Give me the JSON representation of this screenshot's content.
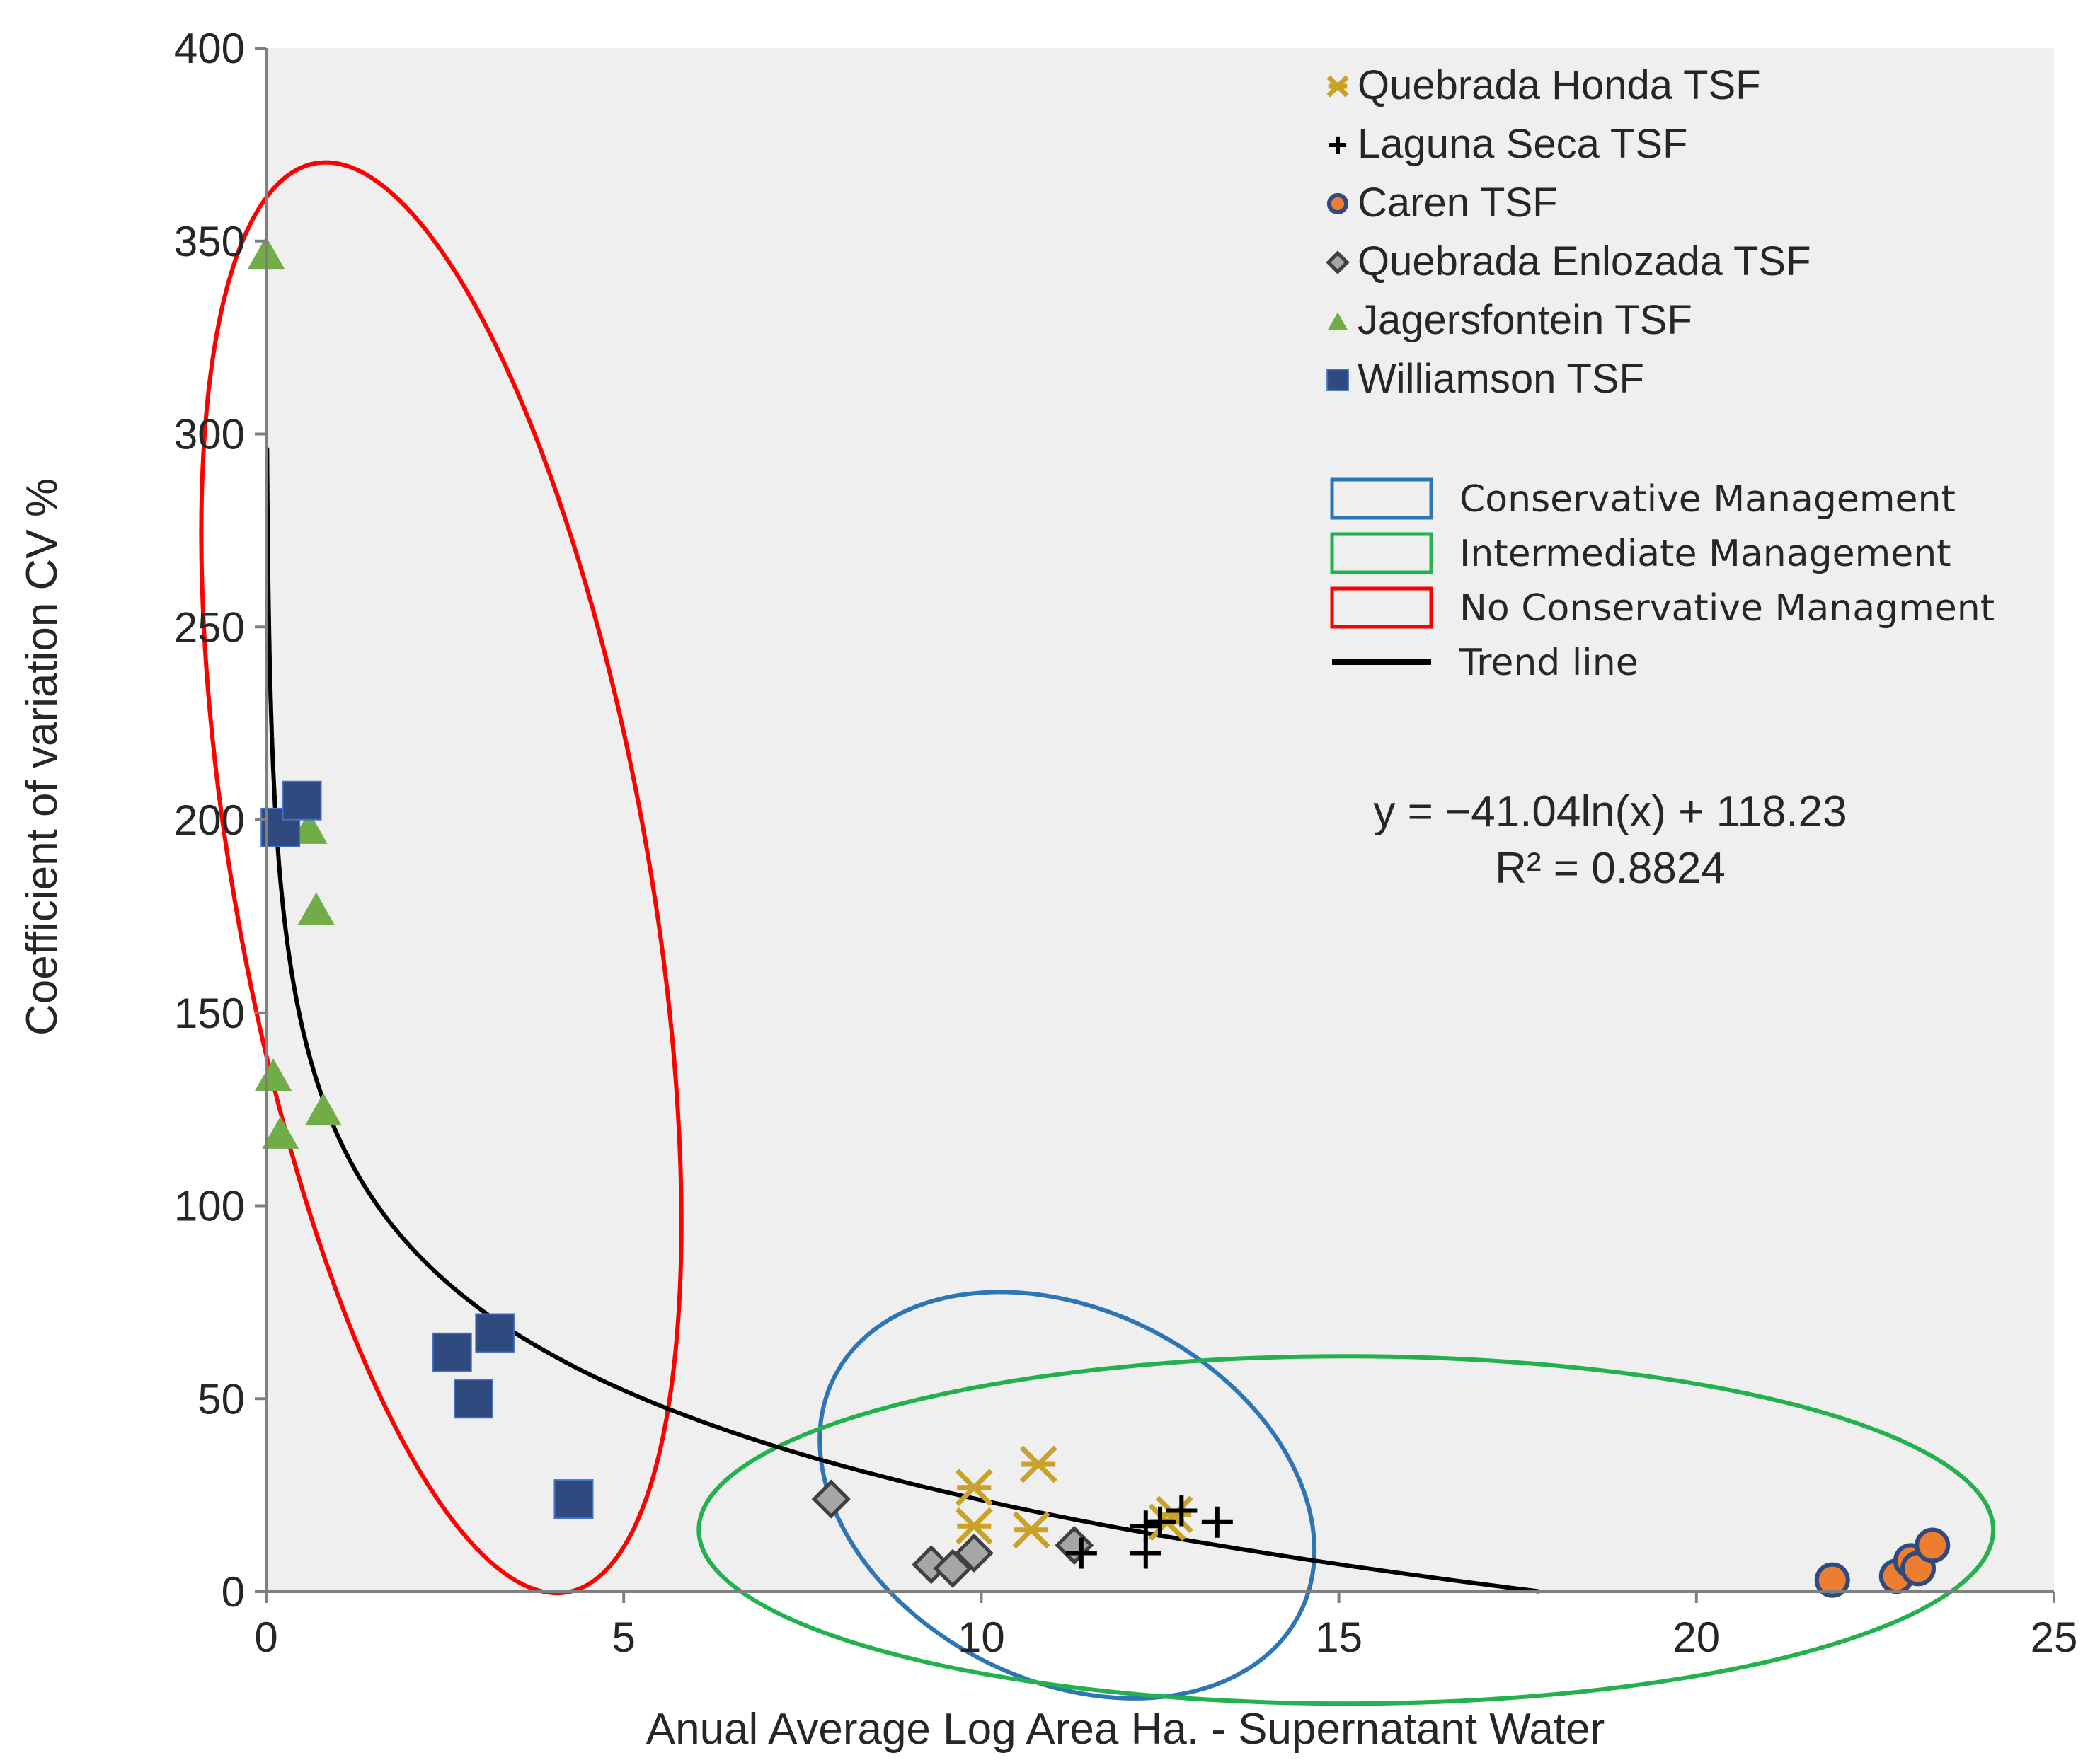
{
  "chart_data": {
    "type": "scatter",
    "title": "",
    "xlabel": "Anual Average  Log Area Ha. - Supernatant Water",
    "ylabel": "Coefficient of variation CV %",
    "xlim": [
      0,
      25
    ],
    "ylim": [
      0,
      400
    ],
    "xticks": [
      0,
      5,
      10,
      15,
      20,
      25
    ],
    "yticks": [
      0,
      50,
      100,
      150,
      200,
      250,
      300,
      350,
      400
    ],
    "grid": false,
    "legend_position": "top-right",
    "colors": {
      "quebrada_honda": "#C9A227",
      "laguna_seca": "#000000",
      "caren": "#ED7D31",
      "quebrada_enlozada": "#A6A6A6",
      "jagersfontein": "#70AD47",
      "williamson": "#2F4A7F",
      "conservative": "#2E75B6",
      "intermediate": "#22B14C",
      "no_conservative": "#FF0000",
      "plot_bg": "#EFEFEF"
    },
    "series": [
      {
        "name": "Quebrada Honda TSF",
        "marker": "star",
        "color": "#C9A227",
        "points": [
          [
            9.9,
            27
          ],
          [
            9.9,
            17
          ],
          [
            10.7,
            16
          ],
          [
            10.8,
            33
          ],
          [
            12.6,
            18
          ],
          [
            12.7,
            20
          ]
        ]
      },
      {
        "name": "Laguna Seca TSF",
        "marker": "plus",
        "color": "#000000",
        "points": [
          [
            11.4,
            10
          ],
          [
            12.3,
            10
          ],
          [
            12.3,
            17
          ],
          [
            12.5,
            18
          ],
          [
            12.8,
            21
          ],
          [
            13.3,
            18
          ]
        ]
      },
      {
        "name": "Caren TSF",
        "marker": "circle",
        "color": "#ED7D31",
        "points": [
          [
            21.9,
            3
          ],
          [
            22.8,
            4
          ],
          [
            23.0,
            8
          ],
          [
            23.1,
            6
          ],
          [
            23.3,
            12
          ]
        ]
      },
      {
        "name": "Quebrada Enlozada TSF",
        "marker": "diamond",
        "color": "#A6A6A6",
        "points": [
          [
            7.9,
            24
          ],
          [
            9.3,
            7
          ],
          [
            9.6,
            6
          ],
          [
            9.9,
            10
          ],
          [
            11.3,
            12
          ]
        ]
      },
      {
        "name": "Jagersfontein TSF",
        "marker": "triangle",
        "color": "#70AD47",
        "points": [
          [
            0.0,
            347
          ],
          [
            0.1,
            134
          ],
          [
            0.2,
            119
          ],
          [
            0.6,
            198
          ],
          [
            0.7,
            177
          ],
          [
            0.8,
            125
          ]
        ]
      },
      {
        "name": "Williamson TSF",
        "marker": "square",
        "color": "#2F4A7F",
        "points": [
          [
            0.2,
            198
          ],
          [
            0.5,
            205
          ],
          [
            2.6,
            62
          ],
          [
            2.9,
            50
          ],
          [
            3.2,
            67
          ],
          [
            4.3,
            24
          ]
        ]
      }
    ],
    "trendline": {
      "label": "Trend line",
      "equation": "y = −41.04ln(x) + 118.23",
      "r2": "R² = 0.8824",
      "a": -41.04,
      "b": 118.23,
      "x_start": 0.013,
      "x_end": 17.8
    },
    "regions": [
      {
        "name": "Conservative Management",
        "color": "#2E75B6",
        "center": [
          11.2,
          25
        ],
        "rx": 3.65,
        "ry": 48,
        "angle": 27
      },
      {
        "name": "Intermediate Management",
        "color": "#22B14C",
        "center": [
          15.1,
          16
        ],
        "rx": 9.05,
        "ry": 45,
        "angle": 0
      },
      {
        "name": "No Conservative Managment",
        "color": "#FF0000",
        "center": [
          2.45,
          185
        ],
        "rx": 2.9,
        "ry": 188,
        "angle": -10
      }
    ]
  }
}
